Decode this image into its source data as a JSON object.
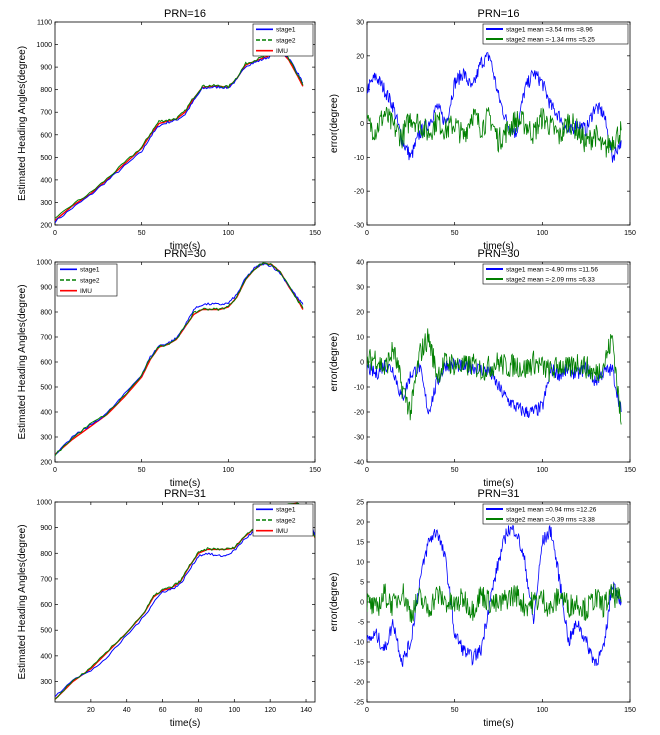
{
  "figure": {
    "panels": [
      {
        "title": "PRN=16",
        "xlabel": "time(s)",
        "ylabel": "Estimated Heading Angles(degree)",
        "xticks": [
          0,
          50,
          100,
          150
        ],
        "yticks": [
          200,
          300,
          400,
          500,
          600,
          700,
          800,
          900,
          1000,
          1100
        ],
        "legend": [
          "stage1",
          "stage2",
          "IMU"
        ]
      },
      {
        "title": "PRN=16",
        "xlabel": "time(s)",
        "ylabel": "error(degree)",
        "xticks": [
          0,
          50,
          100,
          150
        ],
        "yticks": [
          -30,
          -20,
          -10,
          0,
          10,
          20,
          30
        ],
        "legend": [
          "stage1 mean =3.54  rms =8.96",
          "stage2 mean =-1.34 rms =5.25"
        ]
      },
      {
        "title": "PRN=30",
        "xlabel": "time(s)",
        "ylabel": "Estimated Heading Angles(degree)",
        "xticks": [
          0,
          50,
          100,
          150
        ],
        "yticks": [
          200,
          300,
          400,
          500,
          600,
          700,
          800,
          900,
          1000
        ],
        "legend": [
          "stage1",
          "stage2",
          "IMU"
        ]
      },
      {
        "title": "PRN=30",
        "xlabel": "time(s)",
        "ylabel": "error(degree)",
        "xticks": [
          0,
          50,
          100,
          150
        ],
        "yticks": [
          -40,
          -30,
          -20,
          -10,
          0,
          10,
          20,
          30,
          40
        ],
        "legend": [
          "stage1 mean =-4.90 rms =11.56",
          "stage2 mean =-2.09 rms =6.33"
        ]
      },
      {
        "title": "PRN=31",
        "xlabel": "time(s)",
        "ylabel": "Estimated Heading Angles(degree)",
        "xticks": [
          20,
          40,
          60,
          80,
          100,
          120,
          140
        ],
        "yticks": [
          300,
          400,
          500,
          600,
          700,
          800,
          900,
          1000
        ],
        "legend": [
          "stage1",
          "stage2",
          "IMU"
        ]
      },
      {
        "title": "PRN=31",
        "xlabel": "time(s)",
        "ylabel": "error(degree)",
        "xticks": [
          0,
          50,
          100,
          150
        ],
        "yticks": [
          -25,
          -20,
          -15,
          -10,
          -5,
          0,
          5,
          10,
          15,
          20,
          25
        ],
        "legend": [
          "stage1 mean =0.94  rms =12.26",
          "stage2 mean =-0.39 rms =3.38"
        ]
      }
    ]
  },
  "colors": {
    "stage1": "#0000ff",
    "stage2": "#007f00",
    "IMU": "#ff0000",
    "axis": "#000000"
  },
  "chart_data": [
    {
      "type": "line",
      "title": "PRN=16",
      "xlabel": "time(s)",
      "ylabel": "Estimated Heading Angles(degree)",
      "xlim": [
        0,
        150
      ],
      "ylim": [
        200,
        1100
      ],
      "legend_position": "top-right",
      "series": [
        {
          "name": "IMU",
          "x": [
            0,
            10,
            20,
            30,
            40,
            50,
            55,
            60,
            65,
            70,
            75,
            80,
            85,
            90,
            95,
            100,
            105,
            110,
            115,
            120,
            125,
            130,
            135,
            140,
            143
          ],
          "y": [
            220,
            285,
            335,
            400,
            470,
            540,
            600,
            650,
            660,
            670,
            700,
            760,
            810,
            815,
            815,
            810,
            850,
            910,
            925,
            940,
            955,
            975,
            930,
            860,
            815
          ]
        },
        {
          "name": "stage1",
          "x": [
            0,
            10,
            20,
            30,
            40,
            50,
            55,
            60,
            65,
            70,
            75,
            80,
            85,
            90,
            95,
            100,
            105,
            110,
            115,
            120,
            125,
            130,
            135,
            140,
            143
          ],
          "y": [
            215,
            275,
            330,
            395,
            460,
            525,
            590,
            640,
            655,
            665,
            690,
            750,
            805,
            810,
            812,
            808,
            845,
            905,
            920,
            935,
            950,
            970,
            940,
            875,
            830
          ]
        },
        {
          "name": "stage2",
          "x": [
            0,
            10,
            20,
            30,
            40,
            50,
            55,
            60,
            65,
            70,
            75,
            80,
            85,
            90,
            95,
            100,
            105,
            110,
            115,
            120,
            125,
            130,
            135,
            140,
            143
          ],
          "y": [
            225,
            290,
            340,
            405,
            475,
            545,
            605,
            660,
            665,
            672,
            705,
            765,
            815,
            818,
            817,
            812,
            855,
            915,
            930,
            945,
            958,
            980,
            935,
            865,
            820
          ]
        }
      ]
    },
    {
      "type": "line",
      "title": "PRN=16",
      "xlabel": "time(s)",
      "ylabel": "error(degree)",
      "xlim": [
        0,
        150
      ],
      "ylim": [
        -30,
        30
      ],
      "legend_position": "top-right",
      "series": [
        {
          "name": "stage1",
          "x": [
            0,
            5,
            10,
            15,
            20,
            25,
            30,
            35,
            40,
            45,
            50,
            55,
            60,
            65,
            70,
            75,
            80,
            85,
            90,
            95,
            100,
            105,
            110,
            115,
            120,
            125,
            130,
            135,
            140,
            145
          ],
          "y": [
            10,
            14,
            10,
            5,
            -5,
            -10,
            -3,
            0,
            5,
            0,
            12,
            15,
            10,
            18,
            20,
            8,
            0,
            -3,
            10,
            15,
            12,
            5,
            2,
            -3,
            0,
            -2,
            5,
            3,
            -10,
            -5
          ]
        },
        {
          "name": "stage2",
          "x": [
            0,
            5,
            10,
            15,
            20,
            25,
            30,
            35,
            40,
            45,
            50,
            55,
            60,
            65,
            70,
            75,
            80,
            85,
            90,
            95,
            100,
            105,
            110,
            115,
            120,
            125,
            130,
            135,
            140,
            145
          ],
          "y": [
            0,
            -2,
            3,
            -1,
            -4,
            2,
            0,
            -3,
            1,
            -2,
            0,
            -4,
            3,
            -1,
            2,
            -5,
            -2,
            1,
            0,
            -3,
            2,
            -1,
            -4,
            1,
            -2,
            -6,
            -3,
            -8,
            -5,
            -2
          ]
        }
      ]
    },
    {
      "type": "line",
      "title": "PRN=30",
      "xlabel": "time(s)",
      "ylabel": "Estimated Heading Angles(degree)",
      "xlim": [
        0,
        150
      ],
      "ylim": [
        200,
        1000
      ],
      "legend_position": "top-left",
      "series": [
        {
          "name": "IMU",
          "x": [
            0,
            10,
            20,
            30,
            40,
            50,
            55,
            60,
            65,
            70,
            75,
            80,
            85,
            90,
            95,
            100,
            105,
            110,
            115,
            120,
            125,
            130,
            135,
            140,
            143
          ],
          "y": [
            230,
            290,
            340,
            390,
            460,
            540,
            610,
            660,
            670,
            690,
            740,
            790,
            810,
            810,
            810,
            820,
            860,
            930,
            970,
            995,
            990,
            960,
            900,
            850,
            810
          ]
        },
        {
          "name": "stage1",
          "x": [
            0,
            10,
            20,
            30,
            40,
            50,
            55,
            60,
            65,
            70,
            75,
            80,
            85,
            90,
            95,
            100,
            105,
            110,
            115,
            120,
            125,
            130,
            135,
            140,
            143
          ],
          "y": [
            225,
            300,
            345,
            395,
            470,
            550,
            620,
            665,
            675,
            695,
            745,
            810,
            830,
            832,
            830,
            835,
            870,
            935,
            975,
            992,
            985,
            955,
            905,
            855,
            830
          ]
        },
        {
          "name": "stage2",
          "x": [
            0,
            10,
            20,
            30,
            40,
            50,
            55,
            60,
            65,
            70,
            75,
            80,
            85,
            90,
            95,
            100,
            105,
            110,
            115,
            120,
            125,
            130,
            135,
            140,
            143
          ],
          "y": [
            228,
            295,
            350,
            392,
            465,
            545,
            615,
            662,
            672,
            692,
            742,
            795,
            812,
            812,
            811,
            822,
            862,
            932,
            972,
            996,
            988,
            958,
            902,
            848,
            815
          ]
        }
      ]
    },
    {
      "type": "line",
      "title": "PRN=30",
      "xlabel": "time(s)",
      "ylabel": "error(degree)",
      "xlim": [
        0,
        150
      ],
      "ylim": [
        -40,
        40
      ],
      "legend_position": "top-right",
      "series": [
        {
          "name": "stage1",
          "x": [
            0,
            5,
            10,
            15,
            20,
            25,
            30,
            35,
            40,
            45,
            50,
            55,
            60,
            65,
            70,
            75,
            80,
            85,
            90,
            95,
            100,
            105,
            110,
            115,
            120,
            125,
            130,
            135,
            140,
            145
          ],
          "y": [
            -2,
            -5,
            -1,
            -3,
            -15,
            -5,
            -2,
            -20,
            -8,
            -1,
            -1,
            -2,
            -2,
            -3,
            -4,
            -10,
            -15,
            -18,
            -20,
            -20,
            -18,
            -3,
            -5,
            -3,
            -5,
            -2,
            -8,
            -4,
            -3,
            -20
          ]
        },
        {
          "name": "stage2",
          "x": [
            0,
            5,
            10,
            15,
            20,
            25,
            30,
            35,
            40,
            45,
            50,
            55,
            60,
            65,
            70,
            75,
            80,
            85,
            90,
            95,
            100,
            105,
            110,
            115,
            120,
            125,
            130,
            135,
            140,
            145
          ],
          "y": [
            0,
            2,
            -3,
            5,
            -10,
            -20,
            3,
            10,
            -5,
            0,
            -1,
            -2,
            -1,
            -3,
            -2,
            0,
            -2,
            -1,
            -3,
            0,
            -2,
            -4,
            -1,
            -3,
            0,
            -2,
            -5,
            -1,
            10,
            -25
          ]
        }
      ]
    },
    {
      "type": "line",
      "title": "PRN=31",
      "xlabel": "time(s)",
      "ylabel": "Estimated Heading Angles(degree)",
      "xlim": [
        0,
        145
      ],
      "ylim": [
        220,
        1000
      ],
      "legend_position": "top-right",
      "series": [
        {
          "name": "IMU",
          "x": [
            0,
            10,
            20,
            30,
            40,
            50,
            55,
            60,
            65,
            70,
            75,
            80,
            85,
            90,
            95,
            100,
            105,
            110,
            115,
            120,
            125,
            130,
            135,
            140,
            145
          ],
          "y": [
            230,
            300,
            350,
            420,
            490,
            570,
            630,
            655,
            665,
            690,
            750,
            800,
            815,
            815,
            815,
            820,
            860,
            890,
            890,
            900,
            950,
            990,
            995,
            960,
            860
          ]
        },
        {
          "name": "stage1",
          "x": [
            0,
            10,
            20,
            30,
            40,
            50,
            55,
            60,
            65,
            70,
            75,
            80,
            85,
            90,
            95,
            100,
            105,
            110,
            115,
            120,
            125,
            130,
            135,
            140,
            145
          ],
          "y": [
            240,
            310,
            340,
            400,
            480,
            555,
            610,
            650,
            660,
            680,
            735,
            790,
            800,
            790,
            790,
            810,
            850,
            880,
            885,
            895,
            945,
            985,
            990,
            965,
            870
          ]
        },
        {
          "name": "stage2",
          "x": [
            0,
            10,
            20,
            30,
            40,
            50,
            55,
            60,
            65,
            70,
            75,
            80,
            85,
            90,
            95,
            100,
            105,
            110,
            115,
            120,
            125,
            130,
            135,
            140,
            145
          ],
          "y": [
            232,
            302,
            352,
            422,
            492,
            572,
            632,
            658,
            668,
            692,
            752,
            802,
            817,
            816,
            816,
            821,
            862,
            892,
            891,
            902,
            952,
            992,
            996,
            961,
            862
          ]
        }
      ]
    },
    {
      "type": "line",
      "title": "PRN=31",
      "xlabel": "time(s)",
      "ylabel": "error(degree)",
      "xlim": [
        0,
        150
      ],
      "ylim": [
        -25,
        25
      ],
      "legend_position": "top-right",
      "series": [
        {
          "name": "stage1",
          "x": [
            0,
            5,
            10,
            15,
            20,
            25,
            30,
            35,
            40,
            45,
            50,
            55,
            60,
            65,
            70,
            75,
            80,
            85,
            90,
            95,
            100,
            105,
            110,
            115,
            120,
            125,
            130,
            135,
            140,
            145
          ],
          "y": [
            -10,
            -8,
            -12,
            -5,
            -15,
            -10,
            5,
            15,
            18,
            10,
            -8,
            -12,
            -14,
            -12,
            0,
            10,
            18,
            18,
            10,
            -5,
            15,
            18,
            5,
            -10,
            -5,
            -10,
            -15,
            -12,
            5,
            0
          ]
        },
        {
          "name": "stage2",
          "x": [
            0,
            5,
            10,
            15,
            20,
            25,
            30,
            35,
            40,
            45,
            50,
            55,
            60,
            65,
            70,
            75,
            80,
            85,
            90,
            95,
            100,
            105,
            110,
            115,
            120,
            125,
            130,
            135,
            140,
            145
          ],
          "y": [
            0,
            -2,
            2,
            -1,
            3,
            -3,
            1,
            -2,
            2,
            0,
            -1,
            1,
            -2,
            2,
            0,
            -1,
            1,
            2,
            -1,
            0,
            1,
            -2,
            2,
            -1,
            0,
            -2,
            1,
            -1,
            2,
            0
          ]
        }
      ]
    }
  ]
}
